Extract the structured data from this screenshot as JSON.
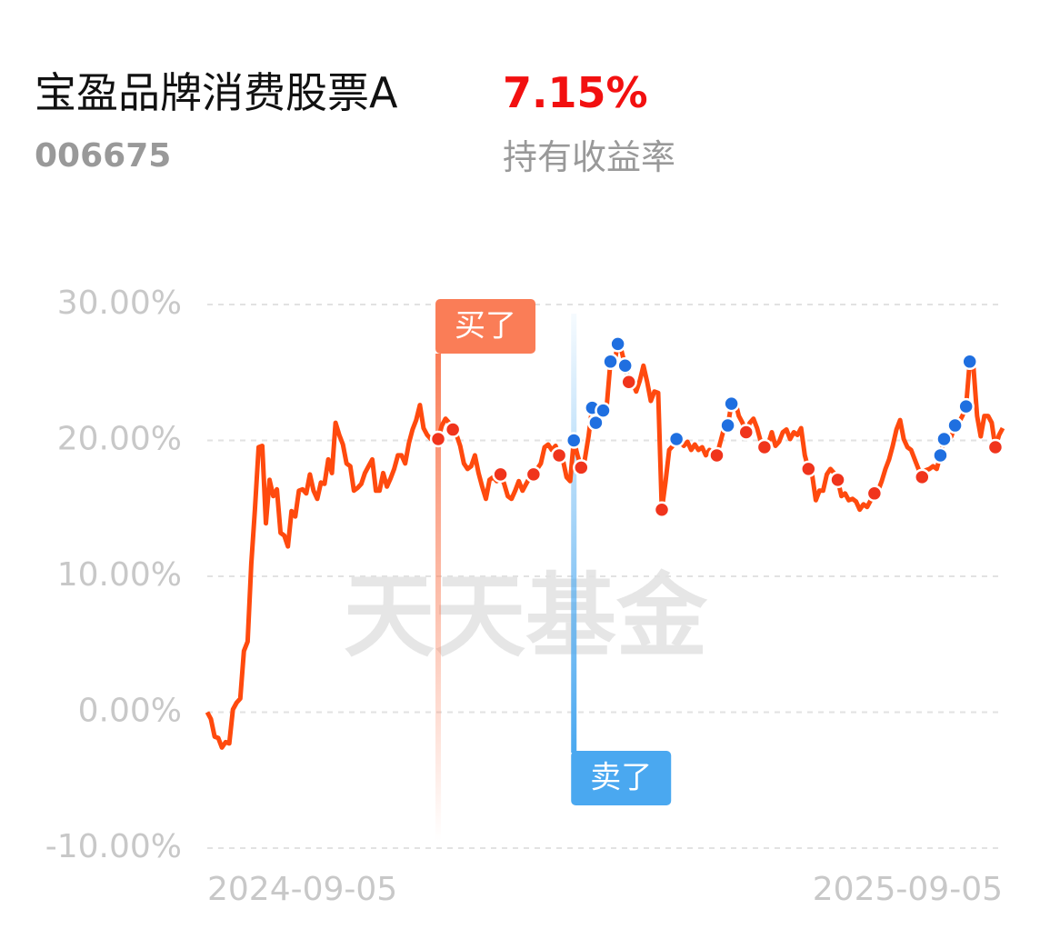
{
  "header": {
    "fund_name": "宝盈品牌消费股票A",
    "code": "006675",
    "return_value": "7.15%",
    "return_label": "持有收益率"
  },
  "chart_data": {
    "type": "line",
    "watermark": "天天基金",
    "categories": [
      "2024-09-05",
      null,
      null,
      null,
      null,
      null,
      null,
      null,
      null,
      null,
      null,
      null,
      null,
      null,
      null,
      null,
      null,
      null,
      null,
      null,
      null,
      null,
      null,
      null,
      null,
      null,
      null,
      null,
      null,
      null,
      null,
      null,
      null,
      null,
      null,
      null,
      null,
      null,
      null,
      null,
      null,
      null,
      null,
      null,
      null,
      null,
      null,
      null,
      null,
      null,
      null,
      null,
      null,
      null,
      null,
      null,
      null,
      null,
      null,
      null,
      null,
      null,
      null,
      null,
      null,
      null,
      null,
      null,
      null,
      null,
      null,
      null,
      null,
      null,
      null,
      null,
      null,
      null,
      null,
      null,
      null,
      null,
      null,
      null,
      null,
      null,
      null,
      null,
      null,
      null,
      null,
      null,
      null,
      null,
      null,
      null,
      null,
      null,
      null,
      null,
      null,
      null,
      null,
      null,
      null,
      null,
      null,
      null,
      null,
      null,
      null,
      null,
      null,
      null,
      null,
      null,
      null,
      null,
      null,
      null,
      null,
      null,
      null,
      null,
      null,
      null,
      null,
      null,
      null,
      null,
      null,
      null,
      null,
      null,
      null,
      null,
      null,
      null,
      null,
      null,
      null,
      null,
      null,
      null,
      null,
      null,
      null,
      null,
      null,
      null,
      null,
      null,
      null,
      null,
      null,
      null,
      null,
      null,
      null,
      null,
      null,
      null,
      null,
      null,
      null,
      null,
      null,
      null,
      null,
      null,
      null,
      null,
      null,
      null,
      null,
      null,
      null,
      null,
      null,
      null,
      null,
      null,
      null,
      null,
      null,
      null,
      null,
      null,
      null,
      null,
      null,
      null,
      null,
      null,
      null,
      null,
      null,
      null,
      null,
      null,
      null,
      null,
      null,
      null,
      null,
      null,
      null,
      null,
      null,
      null,
      null,
      null,
      null,
      null,
      null,
      null,
      null,
      "2025-09-05"
    ],
    "series": [
      {
        "color": "#ff4a0e",
        "values": [
          0,
          -0.5,
          -1.8,
          -1.9,
          -2.6,
          -2.2,
          -2.3,
          0.2,
          0.7,
          1.0,
          4.5,
          5.2,
          10.9,
          14.9,
          19.5,
          19.6,
          13.9,
          17.1,
          15.9,
          16.4,
          13.2,
          13.0,
          12.2,
          14.8,
          14.4,
          16.3,
          16.4,
          16.1,
          17.5,
          16.3,
          15.7,
          16.9,
          16.8,
          18.6,
          17.6,
          21.3,
          20.4,
          19.7,
          18.3,
          18.1,
          16.3,
          16.5,
          16.8,
          17.6,
          18.1,
          18.6,
          16.3,
          16.3,
          17.6,
          16.6,
          17.2,
          17.9,
          18.9,
          18.9,
          18.3,
          19.8,
          20.8,
          21.5,
          22.6,
          20.9,
          20.4,
          20.1,
          20.3,
          20.1,
          21.1,
          21.6,
          21.3,
          20.8,
          20.4,
          19.6,
          18.3,
          17.9,
          18.1,
          18.9,
          17.6,
          16.6,
          15.7,
          17.1,
          17.3,
          17.0,
          17.5,
          16.8,
          15.9,
          15.7,
          16.3,
          17.0,
          16.3,
          16.8,
          17.3,
          17.5,
          17.9,
          18.3,
          19.5,
          19.7,
          19.3,
          19.6,
          18.9,
          18.6,
          17.3,
          17.0,
          20.0,
          18.9,
          18.0,
          18.6,
          20.3,
          22.4,
          21.3,
          21.8,
          22.2,
          22.6,
          25.8,
          25.6,
          27.1,
          26.6,
          25.5,
          24.3,
          24.3,
          23.6,
          24.4,
          25.5,
          24.3,
          22.9,
          23.6,
          23.5,
          14.9,
          16.9,
          19.3,
          19.6,
          20.1,
          19.9,
          19.6,
          19.9,
          19.3,
          19.7,
          19.3,
          19.5,
          18.9,
          19.3,
          18.9,
          18.9,
          19.9,
          20.9,
          21.1,
          22.7,
          22.9,
          21.8,
          21.3,
          20.6,
          21.3,
          21.6,
          20.9,
          19.9,
          19.5,
          19.7,
          20.6,
          19.6,
          19.9,
          20.6,
          20.8,
          20.1,
          20.6,
          20.4,
          20.9,
          18.9,
          17.9,
          17.5,
          15.6,
          16.3,
          16.3,
          17.5,
          17.9,
          17.6,
          17.1,
          15.9,
          16.1,
          15.6,
          15.7,
          15.5,
          14.9,
          15.3,
          15.1,
          15.6,
          16.1,
          16.3,
          17.0,
          17.9,
          18.6,
          19.6,
          20.8,
          21.5,
          20.1,
          19.5,
          19.3,
          18.6,
          17.9,
          17.3,
          17.8,
          17.9,
          18.1,
          17.9,
          18.9,
          20.1,
          19.9,
          20.3,
          21.1,
          21.3,
          21.8,
          22.5,
          25.8,
          25.5,
          21.8,
          20.3,
          21.8,
          21.8,
          21.3,
          19.5,
          20.4,
          20.9
        ]
      }
    ],
    "buy_marks": {
      "label": "买了",
      "color": "#f0341c",
      "label_color": "#fa7d57",
      "values": [
        null,
        null,
        null,
        null,
        null,
        null,
        null,
        null,
        null,
        null,
        null,
        null,
        null,
        null,
        null,
        null,
        null,
        null,
        null,
        null,
        null,
        null,
        null,
        null,
        null,
        null,
        null,
        null,
        null,
        null,
        null,
        null,
        null,
        null,
        null,
        null,
        null,
        null,
        null,
        null,
        null,
        null,
        null,
        null,
        null,
        null,
        null,
        null,
        null,
        null,
        null,
        null,
        null,
        null,
        null,
        null,
        null,
        null,
        null,
        null,
        null,
        null,
        null,
        20.1,
        null,
        null,
        null,
        20.8,
        null,
        null,
        null,
        null,
        null,
        null,
        null,
        null,
        null,
        null,
        null,
        null,
        17.5,
        null,
        null,
        null,
        null,
        null,
        null,
        null,
        null,
        17.5,
        null,
        null,
        null,
        null,
        null,
        null,
        18.9,
        null,
        null,
        null,
        null,
        null,
        18.0,
        null,
        null,
        null,
        null,
        null,
        null,
        null,
        null,
        null,
        null,
        null,
        null,
        24.3,
        null,
        null,
        null,
        null,
        null,
        null,
        null,
        null,
        14.9,
        null,
        null,
        null,
        null,
        null,
        null,
        null,
        null,
        null,
        null,
        null,
        null,
        null,
        null,
        18.9,
        null,
        null,
        null,
        null,
        null,
        null,
        null,
        20.6,
        null,
        null,
        null,
        null,
        19.5,
        null,
        null,
        null,
        null,
        null,
        null,
        null,
        null,
        null,
        null,
        null,
        17.9,
        null,
        null,
        null,
        null,
        null,
        null,
        null,
        17.1,
        null,
        null,
        null,
        null,
        null,
        null,
        null,
        null,
        null,
        16.1,
        null,
        null,
        null,
        null,
        null,
        null,
        null,
        null,
        null,
        null,
        null,
        null,
        17.3,
        null,
        null,
        null,
        null,
        null,
        null,
        null,
        null,
        null,
        null,
        null,
        null,
        null,
        null,
        null,
        null,
        null,
        null,
        null,
        19.5,
        null,
        null
      ]
    },
    "sell_marks": {
      "label": "卖了",
      "color": "#1f6fe0",
      "label_color": "#4aa8f0",
      "values": [
        null,
        null,
        null,
        null,
        null,
        null,
        null,
        null,
        null,
        null,
        null,
        null,
        null,
        null,
        null,
        null,
        null,
        null,
        null,
        null,
        null,
        null,
        null,
        null,
        null,
        null,
        null,
        null,
        null,
        null,
        null,
        null,
        null,
        null,
        null,
        null,
        null,
        null,
        null,
        null,
        null,
        null,
        null,
        null,
        null,
        null,
        null,
        null,
        null,
        null,
        null,
        null,
        null,
        null,
        null,
        null,
        null,
        null,
        null,
        null,
        null,
        null,
        null,
        null,
        null,
        null,
        null,
        null,
        null,
        null,
        null,
        null,
        null,
        null,
        null,
        null,
        null,
        null,
        null,
        null,
        null,
        null,
        null,
        null,
        null,
        null,
        null,
        null,
        null,
        null,
        null,
        null,
        null,
        null,
        null,
        null,
        null,
        null,
        null,
        null,
        20.0,
        null,
        null,
        null,
        null,
        22.4,
        21.3,
        null,
        22.2,
        null,
        25.8,
        null,
        27.1,
        null,
        25.5,
        null,
        null,
        null,
        null,
        null,
        null,
        null,
        null,
        null,
        null,
        null,
        null,
        null,
        20.1,
        null,
        null,
        null,
        null,
        null,
        null,
        null,
        null,
        null,
        null,
        null,
        null,
        null,
        21.1,
        22.7,
        null,
        null,
        null,
        null,
        null,
        null,
        null,
        null,
        null,
        null,
        null,
        null,
        null,
        null,
        null,
        null,
        null,
        null,
        null,
        null,
        null,
        null,
        null,
        null,
        null,
        null,
        null,
        null,
        null,
        null,
        null,
        null,
        null,
        null,
        null,
        null,
        null,
        null,
        null,
        null,
        null,
        null,
        null,
        null,
        null,
        null,
        null,
        null,
        null,
        null,
        null,
        null,
        null,
        null,
        null,
        null,
        18.9,
        20.1,
        null,
        null,
        21.1,
        null,
        null,
        22.5,
        25.8,
        null,
        null,
        null,
        null,
        null,
        null,
        null,
        null,
        null
      ]
    },
    "ylim": [
      -10,
      30
    ],
    "yticks": [
      {
        "value": -10,
        "label": "-10.00%"
      },
      {
        "value": 0,
        "label": "0.00%"
      },
      {
        "value": 10,
        "label": "10.00%"
      },
      {
        "value": 20,
        "label": "20.00%"
      },
      {
        "value": 30,
        "label": "30.00%"
      }
    ],
    "grid": true
  }
}
